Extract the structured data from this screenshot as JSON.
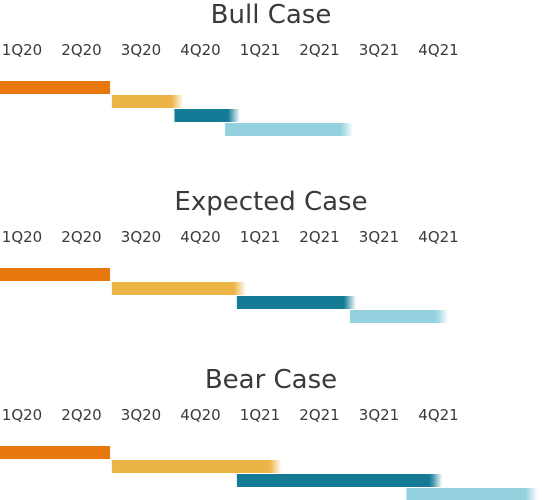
{
  "chart_data": {
    "type": "bar",
    "categories": [
      "1Q20",
      "2Q20",
      "3Q20",
      "4Q20",
      "1Q21",
      "2Q21",
      "3Q21",
      "4Q21"
    ],
    "phase_colors": [
      "#e8780e",
      "#ecb444",
      "#157a96",
      "#93d1de"
    ],
    "charts": [
      {
        "title": "Bull Case",
        "phases": [
          {
            "start": 0.0,
            "end": 1.85
          },
          {
            "start": 1.85,
            "end": 3.05
          },
          {
            "start": 2.9,
            "end": 4.0
          },
          {
            "start": 3.75,
            "end": 5.9
          }
        ]
      },
      {
        "title": "Expected Case",
        "phases": [
          {
            "start": 0.0,
            "end": 1.85
          },
          {
            "start": 1.85,
            "end": 4.1
          },
          {
            "start": 3.95,
            "end": 5.95
          },
          {
            "start": 5.85,
            "end": 7.5
          }
        ]
      },
      {
        "title": "Bear Case",
        "phases": [
          {
            "start": 0.0,
            "end": 1.85
          },
          {
            "start": 1.85,
            "end": 4.7
          },
          {
            "start": 3.95,
            "end": 7.4
          },
          {
            "start": 6.8,
            "end": 9.0
          }
        ]
      }
    ]
  }
}
